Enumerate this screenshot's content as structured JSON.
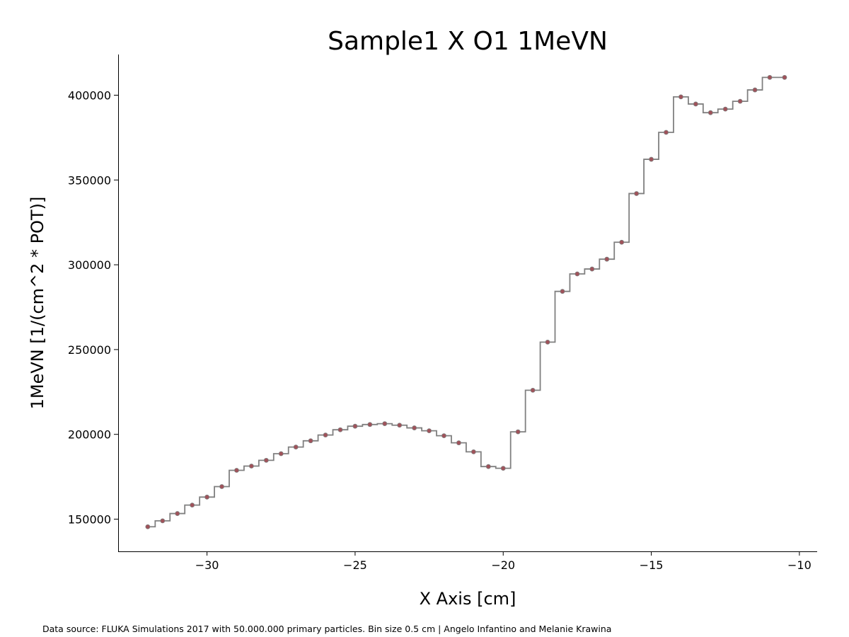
{
  "chart_data": {
    "type": "line",
    "style": "step-with-markers",
    "title": "Sample1 X O1 1MeVN",
    "xlabel": "X Axis [cm]",
    "ylabel": "1MeVN [1/(cm^2 * POT)]",
    "xlim": [
      -33,
      -9.4
    ],
    "ylim": [
      131000,
      424000
    ],
    "xticks": [
      -30,
      -25,
      -20,
      -15,
      -10
    ],
    "xtick_labels": [
      "−30",
      "−25",
      "−20",
      "−15",
      "−10"
    ],
    "yticks": [
      150000,
      200000,
      250000,
      300000,
      350000,
      400000
    ],
    "ytick_labels": [
      "150000",
      "200000",
      "250000",
      "300000",
      "350000",
      "400000"
    ],
    "bin_width": 0.5,
    "series": [
      {
        "name": "1MeVN",
        "line_color": "#808080",
        "marker_color": "#a0525a",
        "x": [
          -32,
          -31.5,
          -31,
          -30.5,
          -30,
          -29.5,
          -29,
          -28.5,
          -28,
          -27.5,
          -27,
          -26.5,
          -26,
          -25.5,
          -25,
          -24.5,
          -24,
          -23.5,
          -23,
          -22.5,
          -22,
          -21.5,
          -21,
          -20.5,
          -20,
          -19.5,
          -19,
          -18.5,
          -18,
          -17.5,
          -17,
          -16.5,
          -16,
          -15.5,
          -15,
          -14.5,
          -14,
          -13.5,
          -13,
          -12.5,
          -12,
          -11.5,
          -11,
          -10.5
        ],
        "values": [
          145500,
          149000,
          153300,
          158300,
          163000,
          169200,
          178800,
          181300,
          184700,
          188600,
          192500,
          196200,
          199600,
          202700,
          204800,
          205800,
          206300,
          205400,
          203800,
          202100,
          199200,
          195000,
          189700,
          181000,
          180000,
          201500,
          226000,
          254400,
          284300,
          294600,
          297500,
          303300,
          313300,
          342000,
          362200,
          378100,
          399000,
          394800,
          389700,
          391800,
          396400,
          403100,
          410500,
          410500
        ]
      }
    ]
  },
  "footnote": "Data source: FLUKA Simulations 2017 with 50.000.000 primary particles. Bin size 0.5 cm | Angelo Infantino and Melanie Krawina"
}
